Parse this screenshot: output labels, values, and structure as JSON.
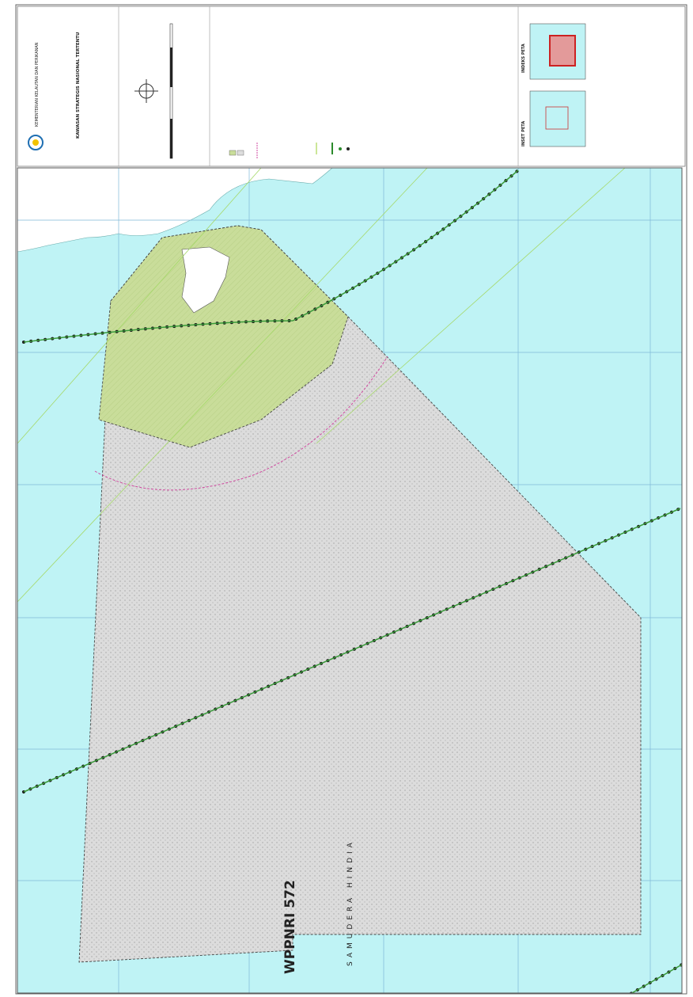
{
  "header": {
    "agency": "KEMENTERIAN KELAUTAN DAN PERIKANAN",
    "title": "KAWASAN STRATEGIS NASIONAL TERTENTU"
  },
  "insets": {
    "inset": "INSET PETA",
    "index": "INDEKS PETA"
  },
  "map": {
    "zone": "WPPNRI 572",
    "sea": "SAMUDERA HINDIA"
  }
}
